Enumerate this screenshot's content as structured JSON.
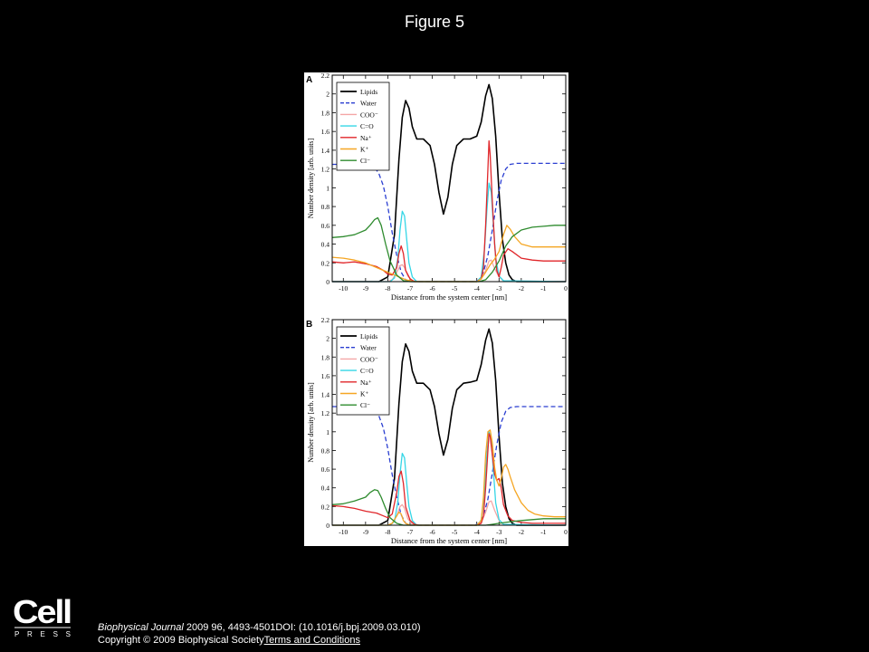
{
  "page": {
    "title": "Figure 5"
  },
  "legend_items": [
    {
      "label": "Lipids",
      "color": "#000000",
      "dashed": false
    },
    {
      "label": "Water",
      "color": "#2b3fd1",
      "dashed": true
    },
    {
      "label": "COO⁻",
      "color": "#f4a6a6",
      "dashed": false
    },
    {
      "label": "C=O",
      "color": "#35d6e6",
      "dashed": false
    },
    {
      "label": "Na⁺",
      "color": "#e0262a",
      "dashed": false
    },
    {
      "label": "K⁺",
      "color": "#f5a623",
      "dashed": false
    },
    {
      "label": "Cl⁻",
      "color": "#2e8b2e",
      "dashed": false
    }
  ],
  "chart_data": [
    {
      "panel": "A",
      "type": "line",
      "xlabel": "Distance from the system center [nm]",
      "ylabel": "Number density [arb. units]",
      "xlim": [
        -10.5,
        0
      ],
      "ylim": [
        0,
        2.2
      ],
      "xticks": [
        -10,
        -9,
        -8,
        -7,
        -6,
        -5,
        -4,
        -3,
        -2,
        -1,
        0
      ],
      "yticks": [
        0,
        0.2,
        0.4,
        0.6,
        0.8,
        1,
        1.2,
        1.4,
        1.6,
        1.8,
        2,
        2.2
      ],
      "series": [
        {
          "name": "Lipids",
          "x": [
            -10.5,
            -8.4,
            -8.0,
            -7.7,
            -7.5,
            -7.35,
            -7.2,
            -7.05,
            -6.9,
            -6.7,
            -6.4,
            -6.1,
            -5.9,
            -5.7,
            -5.5,
            -5.3,
            -5.1,
            -4.9,
            -4.6,
            -4.3,
            -4.0,
            -3.8,
            -3.6,
            -3.45,
            -3.3,
            -3.15,
            -3.0,
            -2.85,
            -2.7,
            -2.55,
            -2.4,
            -2.2,
            -1.8,
            0
          ],
          "y": [
            0,
            0,
            0.05,
            0.5,
            1.3,
            1.75,
            1.93,
            1.85,
            1.65,
            1.52,
            1.52,
            1.45,
            1.25,
            0.95,
            0.72,
            0.9,
            1.25,
            1.45,
            1.52,
            1.52,
            1.55,
            1.7,
            1.98,
            2.1,
            1.95,
            1.55,
            0.95,
            0.45,
            0.2,
            0.07,
            0.02,
            0,
            0,
            0
          ]
        },
        {
          "name": "Water",
          "x": [
            -10.5,
            -9.0,
            -8.6,
            -8.4,
            -8.2,
            -8.0,
            -7.8,
            -7.6,
            -7.4,
            -7.2,
            -7.0,
            -4.1,
            -3.9,
            -3.7,
            -3.5,
            -3.3,
            -3.1,
            -2.9,
            -2.7,
            -2.5,
            -2.2,
            0
          ],
          "y": [
            1.25,
            1.25,
            1.22,
            1.15,
            1.02,
            0.8,
            0.52,
            0.28,
            0.1,
            0.02,
            0,
            0,
            0.02,
            0.1,
            0.28,
            0.55,
            0.85,
            1.08,
            1.2,
            1.25,
            1.26,
            1.26
          ]
        },
        {
          "name": "COO⁻",
          "x": [
            -10.5,
            -8.0,
            -7.8,
            -7.6,
            -7.45,
            -7.35,
            -7.25,
            -7.1,
            -6.9,
            -6.6,
            -4.0,
            -3.8,
            -3.6,
            -3.45,
            -3.35,
            -3.2,
            -3.0,
            -2.8,
            0
          ],
          "y": [
            0,
            0,
            0.02,
            0.1,
            0.17,
            0.18,
            0.15,
            0.06,
            0.01,
            0,
            0,
            0.03,
            0.12,
            0.22,
            0.23,
            0.14,
            0.05,
            0.01,
            0
          ]
        },
        {
          "name": "C=O",
          "x": [
            -10.5,
            -7.9,
            -7.7,
            -7.55,
            -7.45,
            -7.35,
            -7.25,
            -7.15,
            -7.05,
            -6.9,
            -6.7,
            -4.0,
            -3.8,
            -3.65,
            -3.55,
            -3.45,
            -3.35,
            -3.25,
            -3.15,
            -3.0,
            -2.8,
            0
          ],
          "y": [
            0,
            0,
            0.04,
            0.25,
            0.55,
            0.75,
            0.7,
            0.45,
            0.2,
            0.05,
            0,
            0,
            0.05,
            0.35,
            0.75,
            1.05,
            0.95,
            0.6,
            0.25,
            0.06,
            0.01,
            0
          ]
        },
        {
          "name": "Na⁺",
          "x": [
            -10.5,
            -10.0,
            -9.5,
            -9.0,
            -8.5,
            -8.2,
            -8.0,
            -7.8,
            -7.6,
            -7.5,
            -7.4,
            -7.3,
            -7.2,
            -7.0,
            -6.8,
            -6.6,
            -4.0,
            -3.8,
            -3.7,
            -3.6,
            -3.5,
            -3.45,
            -3.4,
            -3.3,
            -3.2,
            -3.1,
            -3.0,
            -2.9,
            -2.8,
            -2.6,
            -2.4,
            -2.0,
            -1.5,
            -1.0,
            0
          ],
          "y": [
            0.21,
            0.2,
            0.21,
            0.19,
            0.16,
            0.12,
            0.08,
            0.07,
            0.15,
            0.3,
            0.38,
            0.3,
            0.12,
            0.03,
            0,
            0,
            0,
            0.03,
            0.15,
            0.6,
            1.2,
            1.5,
            1.35,
            0.85,
            0.4,
            0.12,
            0.05,
            0.15,
            0.28,
            0.35,
            0.32,
            0.25,
            0.23,
            0.22,
            0.22
          ]
        },
        {
          "name": "K⁺",
          "x": [
            -10.5,
            -10.0,
            -9.5,
            -9.0,
            -8.5,
            -8.0,
            -7.8,
            -7.5,
            -7.2,
            -7.0,
            -6.8,
            -4.0,
            -3.8,
            -3.6,
            -3.4,
            -3.2,
            -3.0,
            -2.8,
            -2.65,
            -2.5,
            -2.3,
            -2.0,
            -1.5,
            -1.0,
            0
          ],
          "y": [
            0.26,
            0.25,
            0.23,
            0.2,
            0.15,
            0.1,
            0.08,
            0.05,
            0.02,
            0.01,
            0,
            0,
            0.03,
            0.1,
            0.18,
            0.24,
            0.32,
            0.5,
            0.6,
            0.56,
            0.48,
            0.4,
            0.37,
            0.37,
            0.37
          ]
        },
        {
          "name": "Cl⁻",
          "x": [
            -10.5,
            -10.0,
            -9.5,
            -9.0,
            -8.8,
            -8.6,
            -8.45,
            -8.3,
            -8.1,
            -7.9,
            -7.6,
            -7.3,
            -7.0,
            -3.9,
            -3.6,
            -3.3,
            -3.0,
            -2.7,
            -2.4,
            -2.0,
            -1.5,
            -1.0,
            -0.5,
            0
          ],
          "y": [
            0.47,
            0.48,
            0.5,
            0.55,
            0.6,
            0.66,
            0.68,
            0.6,
            0.4,
            0.22,
            0.07,
            0.01,
            0,
            0,
            0.02,
            0.1,
            0.22,
            0.38,
            0.48,
            0.55,
            0.58,
            0.59,
            0.6,
            0.6
          ]
        }
      ]
    },
    {
      "panel": "B",
      "type": "line",
      "xlabel": "Distance from the system center [nm]",
      "ylabel": "Number density [arb. units]",
      "xlim": [
        -10.5,
        0
      ],
      "ylim": [
        0,
        2.2
      ],
      "xticks": [
        -10,
        -9,
        -8,
        -7,
        -6,
        -5,
        -4,
        -3,
        -2,
        -1,
        0
      ],
      "yticks": [
        0,
        0.2,
        0.4,
        0.6,
        0.8,
        1,
        1.2,
        1.4,
        1.6,
        1.8,
        2,
        2.2
      ],
      "series": [
        {
          "name": "Lipids",
          "x": [
            -10.5,
            -8.4,
            -8.0,
            -7.7,
            -7.5,
            -7.35,
            -7.2,
            -7.05,
            -6.9,
            -6.7,
            -6.4,
            -6.1,
            -5.9,
            -5.7,
            -5.5,
            -5.3,
            -5.1,
            -4.9,
            -4.6,
            -4.3,
            -4.0,
            -3.8,
            -3.6,
            -3.45,
            -3.3,
            -3.15,
            -3.0,
            -2.85,
            -2.7,
            -2.55,
            -2.4,
            -2.2,
            -1.8,
            0
          ],
          "y": [
            0,
            0,
            0.05,
            0.5,
            1.3,
            1.75,
            1.94,
            1.86,
            1.65,
            1.52,
            1.52,
            1.45,
            1.27,
            0.98,
            0.75,
            0.92,
            1.25,
            1.45,
            1.52,
            1.53,
            1.55,
            1.72,
            1.98,
            2.1,
            1.95,
            1.55,
            0.95,
            0.45,
            0.2,
            0.07,
            0.02,
            0,
            0,
            0
          ]
        },
        {
          "name": "Water",
          "x": [
            -10.5,
            -9.0,
            -8.6,
            -8.4,
            -8.2,
            -8.0,
            -7.8,
            -7.6,
            -7.4,
            -7.2,
            -7.0,
            -4.1,
            -3.9,
            -3.7,
            -3.5,
            -3.3,
            -3.1,
            -2.9,
            -2.7,
            -2.5,
            -2.2,
            0
          ],
          "y": [
            1.27,
            1.27,
            1.24,
            1.17,
            1.04,
            0.82,
            0.54,
            0.3,
            0.11,
            0.02,
            0,
            0,
            0.02,
            0.1,
            0.28,
            0.56,
            0.86,
            1.1,
            1.22,
            1.26,
            1.27,
            1.27
          ]
        },
        {
          "name": "COO⁻",
          "x": [
            -10.5,
            -8.0,
            -7.8,
            -7.6,
            -7.45,
            -7.35,
            -7.25,
            -7.1,
            -6.9,
            -6.6,
            -4.0,
            -3.8,
            -3.6,
            -3.45,
            -3.35,
            -3.2,
            -3.0,
            -2.8,
            0
          ],
          "y": [
            0,
            0,
            0.02,
            0.1,
            0.2,
            0.22,
            0.18,
            0.07,
            0.01,
            0,
            0,
            0.03,
            0.14,
            0.25,
            0.26,
            0.16,
            0.05,
            0.01,
            0
          ]
        },
        {
          "name": "C=O",
          "x": [
            -10.5,
            -7.9,
            -7.7,
            -7.55,
            -7.45,
            -7.35,
            -7.25,
            -7.15,
            -7.05,
            -6.9,
            -6.7,
            -4.0,
            -3.8,
            -3.65,
            -3.55,
            -3.45,
            -3.35,
            -3.25,
            -3.15,
            -3.0,
            -2.8,
            0
          ],
          "y": [
            0,
            0,
            0.04,
            0.25,
            0.55,
            0.77,
            0.72,
            0.45,
            0.2,
            0.05,
            0,
            0,
            0.05,
            0.35,
            0.75,
            1.0,
            0.92,
            0.58,
            0.24,
            0.06,
            0.01,
            0
          ]
        },
        {
          "name": "Na⁺",
          "x": [
            -10.5,
            -10.0,
            -9.5,
            -9.0,
            -8.5,
            -8.2,
            -8.0,
            -7.8,
            -7.6,
            -7.5,
            -7.4,
            -7.3,
            -7.2,
            -7.0,
            -6.8,
            -6.6,
            -4.0,
            -3.8,
            -3.7,
            -3.6,
            -3.5,
            -3.45,
            -3.4,
            -3.3,
            -3.2,
            -3.1,
            -3.0,
            -2.9,
            -2.8,
            -2.6,
            -2.4,
            -2.0,
            -1.5,
            -1.0,
            0
          ],
          "y": [
            0.21,
            0.2,
            0.18,
            0.15,
            0.13,
            0.1,
            0.08,
            0.12,
            0.35,
            0.52,
            0.58,
            0.45,
            0.2,
            0.05,
            0.01,
            0,
            0,
            0.02,
            0.1,
            0.4,
            0.8,
            0.98,
            0.95,
            0.75,
            0.55,
            0.48,
            0.5,
            0.4,
            0.22,
            0.1,
            0.05,
            0.03,
            0.02,
            0.02,
            0.02
          ]
        },
        {
          "name": "K⁺",
          "x": [
            -10.5,
            -8.0,
            -7.8,
            -7.6,
            -7.5,
            -7.4,
            -7.3,
            -7.2,
            -7.0,
            -6.8,
            -4.0,
            -3.8,
            -3.7,
            -3.6,
            -3.5,
            -3.4,
            -3.3,
            -3.2,
            -3.1,
            -3.0,
            -2.9,
            -2.8,
            -2.7,
            -2.6,
            -2.5,
            -2.3,
            -2.0,
            -1.7,
            -1.4,
            -1.0,
            -0.5,
            0
          ],
          "y": [
            0,
            0,
            0.02,
            0.1,
            0.14,
            0.12,
            0.05,
            0.02,
            0,
            0,
            0,
            0.05,
            0.3,
            0.75,
            1.0,
            1.02,
            0.88,
            0.62,
            0.48,
            0.42,
            0.5,
            0.62,
            0.65,
            0.6,
            0.52,
            0.38,
            0.24,
            0.16,
            0.12,
            0.1,
            0.09,
            0.09
          ]
        },
        {
          "name": "Cl⁻",
          "x": [
            -10.5,
            -10.0,
            -9.5,
            -9.0,
            -8.8,
            -8.6,
            -8.45,
            -8.3,
            -8.1,
            -7.9,
            -7.6,
            -7.3,
            -7.0,
            -3.9,
            -3.6,
            -3.3,
            -3.0,
            -2.7,
            -2.4,
            -2.0,
            -1.5,
            -1.0,
            -0.5,
            0
          ],
          "y": [
            0.22,
            0.23,
            0.26,
            0.3,
            0.35,
            0.38,
            0.37,
            0.3,
            0.18,
            0.08,
            0.02,
            0,
            0,
            0,
            0,
            0.01,
            0.02,
            0.03,
            0.04,
            0.05,
            0.06,
            0.07,
            0.07,
            0.07
          ]
        }
      ]
    }
  ],
  "footer": {
    "logo_text": "Cell",
    "logo_sub": "PRESS",
    "journal": "Biophysical Journal",
    "citation": " 2009 96, 4493-4501DOI: (10.1016/j.bpj.2009.03.010)",
    "copyright": "Copyright © 2009 Biophysical Society",
    "terms_link": "Terms and Conditions"
  }
}
